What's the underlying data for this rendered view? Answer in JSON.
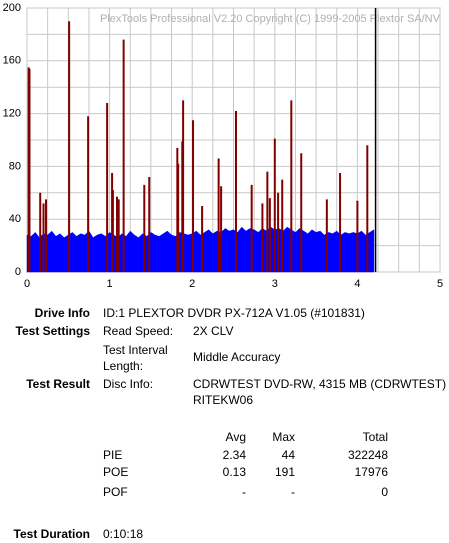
{
  "chart_data": {
    "type": "line",
    "title": "PlexTools Professional V2.20 Copyright (C) 1999-2005 Plextor SA/NV",
    "xlim": [
      0,
      5
    ],
    "xticks": [
      0,
      1,
      2,
      3,
      4,
      5
    ],
    "ylim": [
      0,
      200
    ],
    "yticks": [
      0,
      40,
      80,
      120,
      160,
      200
    ],
    "grid": true,
    "end_marker": 4.22,
    "series": [
      {
        "style": "area",
        "color": "#0000ff",
        "x": [
          0,
          0.05,
          0.1,
          0.15,
          0.2,
          0.25,
          0.3,
          0.35,
          0.4,
          0.45,
          0.5,
          0.55,
          0.6,
          0.65,
          0.7,
          0.75,
          0.8,
          0.85,
          0.9,
          0.95,
          1,
          1.05,
          1.1,
          1.15,
          1.2,
          1.25,
          1.3,
          1.35,
          1.4,
          1.45,
          1.5,
          1.55,
          1.6,
          1.65,
          1.7,
          1.75,
          1.8,
          1.85,
          1.9,
          1.95,
          2,
          2.05,
          2.1,
          2.15,
          2.2,
          2.25,
          2.3,
          2.35,
          2.4,
          2.45,
          2.5,
          2.55,
          2.6,
          2.65,
          2.7,
          2.75,
          2.8,
          2.85,
          2.9,
          2.95,
          3,
          3.05,
          3.1,
          3.15,
          3.2,
          3.25,
          3.3,
          3.35,
          3.4,
          3.45,
          3.5,
          3.55,
          3.6,
          3.65,
          3.7,
          3.75,
          3.8,
          3.85,
          3.9,
          3.95,
          4,
          4.05,
          4.1,
          4.15,
          4.2
        ],
        "values": [
          28,
          27,
          30,
          26,
          29,
          28,
          31,
          27,
          29,
          26,
          28,
          30,
          27,
          29,
          28,
          31,
          26,
          28,
          29,
          27,
          30,
          28,
          26,
          29,
          27,
          31,
          28,
          26,
          29,
          27,
          30,
          28,
          27,
          29,
          31,
          28,
          27,
          30,
          29,
          28,
          29,
          31,
          28,
          30,
          32,
          29,
          31,
          30,
          33,
          31,
          32,
          30,
          34,
          31,
          33,
          32,
          30,
          33,
          31,
          34,
          32,
          33,
          31,
          34,
          32,
          30,
          33,
          31,
          29,
          32,
          30,
          31,
          28,
          30,
          29,
          31,
          28,
          30,
          29,
          30,
          29,
          31,
          28,
          30,
          32
        ]
      },
      {
        "style": "spikes",
        "color": "#800000",
        "x": [
          0.02,
          0.03,
          0.16,
          0.2,
          0.23,
          0.51,
          0.74,
          0.97,
          1.03,
          1.04,
          1.09,
          1.11,
          1.17,
          1.42,
          1.48,
          1.82,
          1.83,
          1.88,
          1.89,
          2.01,
          2.12,
          2.32,
          2.35,
          2.53,
          2.72,
          2.85,
          2.91,
          2.94,
          3.0,
          3.04,
          3.09,
          3.2,
          3.32,
          3.63,
          3.79,
          4.0,
          4.12
        ],
        "values": [
          155,
          154,
          60,
          52,
          55,
          190,
          118,
          128,
          75,
          62,
          57,
          55,
          176,
          66,
          72,
          94,
          82,
          99,
          130,
          115,
          50,
          86,
          65,
          122,
          66,
          52,
          76,
          56,
          101,
          60,
          70,
          130,
          90,
          55,
          75,
          54,
          96
        ]
      }
    ]
  },
  "report": {
    "drive_info": {
      "label": "Drive Info",
      "value": "ID:1 PLEXTOR DVDR PX-712A V1.05 (#101831)"
    },
    "test_settings": {
      "label": "Test Settings",
      "rows": [
        [
          "Read Speed:",
          "2X CLV"
        ],
        [
          "Test Interval Length:",
          "Middle Accuracy"
        ]
      ]
    },
    "test_result": {
      "label": "Test Result",
      "disc_info_label": "Disc Info:",
      "disc_info": "CDRWTEST DVD-RW, 4315 MB (CDRWTEST) RITEKW06"
    },
    "stats": {
      "header": [
        "Avg",
        "Max",
        "Total"
      ],
      "rows": [
        [
          "PIE",
          2.34,
          44,
          322248
        ],
        [
          "POE",
          0.13,
          191,
          17976
        ],
        [
          "POF",
          "-",
          "-",
          0
        ]
      ]
    },
    "duration": {
      "label": "Test Duration",
      "value": "0:10:18"
    }
  }
}
